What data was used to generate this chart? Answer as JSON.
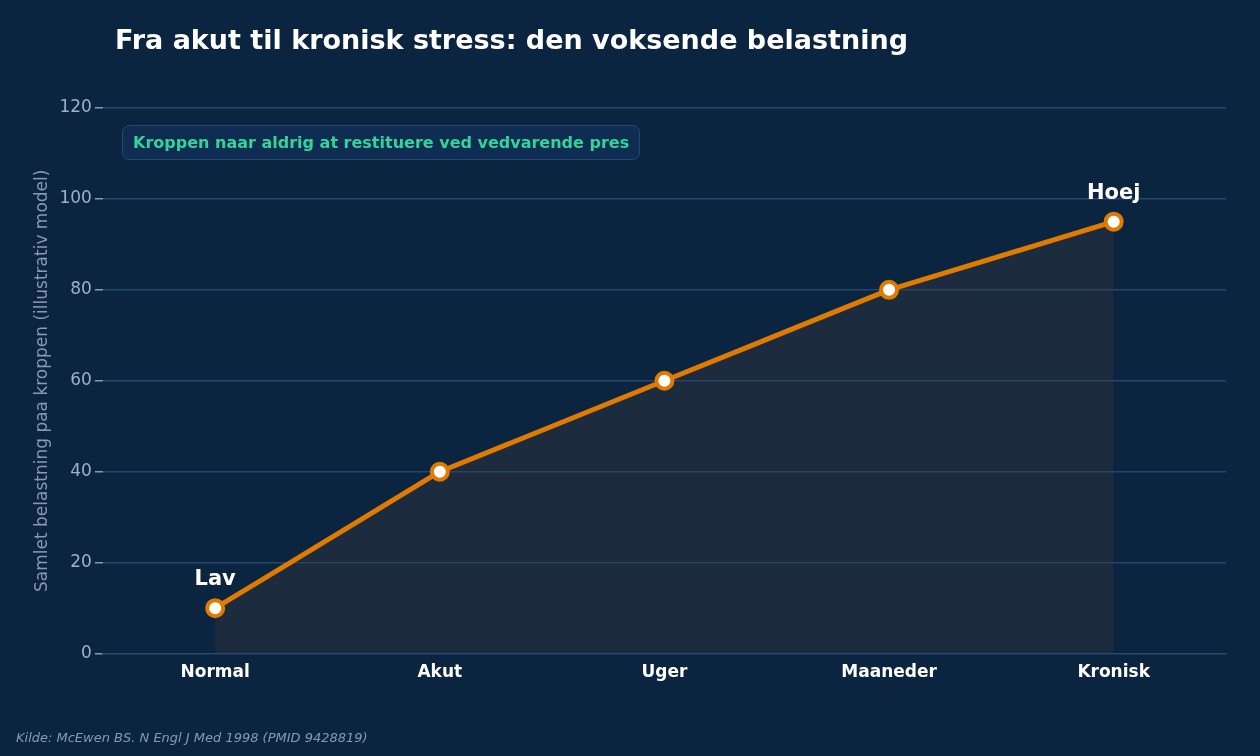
{
  "chart_data": {
    "type": "area",
    "title": "Fra akut til kronisk stress: den voksende belastning",
    "ylabel": "Samlet belastning paa kroppen (illustrativ model)",
    "categories": [
      "Normal",
      "Akut",
      "Uger",
      "Maaneder",
      "Kronisk"
    ],
    "series": [
      {
        "color": "#e07b00",
        "values": [
          10,
          40,
          60,
          80,
          95
        ]
      }
    ],
    "ylim": [
      0,
      120
    ],
    "yticks": [
      0,
      20,
      40,
      60,
      80,
      100,
      120
    ],
    "grid": "y",
    "legend": false,
    "marker": "circle",
    "line_style": "solid",
    "annotations": [
      {
        "text": "Lav",
        "x": "Normal",
        "y": 10
      },
      {
        "text": "Hoej",
        "x": "Kronisk",
        "y": 95
      },
      "Kroppen naar aldrig at restituere ved vedvarende pres",
      "Kilde: McEwen BS. N Engl J Med 1998 (PMID 9428819)"
    ]
  }
}
